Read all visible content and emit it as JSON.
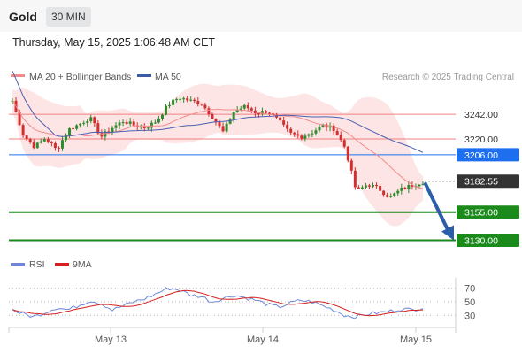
{
  "header": {
    "title": "Gold",
    "timeframe": "30 MIN"
  },
  "datetime": "Thursday, May 15, 2025 1:06:48 AM CET",
  "legend": {
    "ma20_bb": "MA 20 + Bollinger Bands",
    "ma50": "MA 50",
    "copyright": "Research © 2025 Trading Central"
  },
  "rsi_legend": {
    "rsi": "RSI",
    "ma9": "9MA"
  },
  "colors": {
    "bb_fill": "#fde0e0",
    "ma20": "#f28b8b",
    "ma50": "#4a5fb0",
    "resistance": "#f08080",
    "pivot": "#1e6ff0",
    "support": "#1a8a1a",
    "current": "#333333",
    "arrow": "#2a5ea8",
    "candle_up": "#2e8b2e",
    "candle_down": "#d32f2f",
    "rsi": "#6e86d8",
    "rsi_ma": "#d42020"
  },
  "chart_data": [
    {
      "type": "candlestick",
      "title": "Gold 30 MIN",
      "x_labels": [
        "May 13",
        "May 14",
        "May 15"
      ],
      "y_range": [
        3121,
        3268
      ],
      "levels": [
        {
          "label": "3242.00",
          "value": 3242,
          "kind": "resistance"
        },
        {
          "label": "3220.00",
          "value": 3220,
          "kind": "resistance"
        },
        {
          "label": "3206.00",
          "value": 3206,
          "kind": "pivot"
        },
        {
          "label": "3182.55",
          "value": 3182.55,
          "kind": "last-price"
        },
        {
          "label": "3155.00",
          "value": 3155,
          "kind": "support"
        },
        {
          "label": "3130.00",
          "value": 3130,
          "kind": "support"
        }
      ],
      "price_path": [
        3254,
        3223,
        3213,
        3221,
        3210,
        3228,
        3233,
        3239,
        3222,
        3230,
        3236,
        3232,
        3230,
        3236,
        3250,
        3257,
        3254,
        3252,
        3240,
        3226,
        3245,
        3249,
        3243,
        3245,
        3236,
        3225,
        3222,
        3226,
        3232,
        3229,
        3212,
        3173,
        3180,
        3176,
        3168,
        3175,
        3179,
        3182
      ],
      "projection": {
        "from": 3180,
        "to": 3130
      }
    },
    {
      "type": "line",
      "title": "RSI",
      "series": [
        {
          "name": "RSI"
        },
        {
          "name": "9MA"
        }
      ],
      "y_ticks": [
        70,
        50,
        30
      ],
      "rsi_values": [
        38,
        32,
        28,
        35,
        42,
        38,
        45,
        52,
        48,
        38,
        44,
        50,
        55,
        62,
        70,
        68,
        60,
        58,
        50,
        55,
        60,
        56,
        52,
        46,
        42,
        48,
        52,
        50,
        44,
        38,
        30,
        28,
        32,
        34,
        36,
        40,
        38,
        42
      ]
    }
  ]
}
